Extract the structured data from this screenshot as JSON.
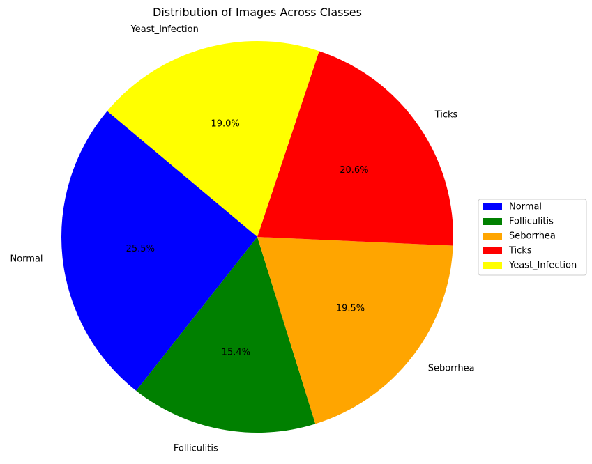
{
  "chart_data": {
    "type": "pie",
    "title": "Distribution of Images Across Classes",
    "categories": [
      "Normal",
      "Folliculitis",
      "Seborrhea",
      "Ticks",
      "Yeast_Infection"
    ],
    "values": [
      25.5,
      15.4,
      19.5,
      20.6,
      19.0
    ],
    "value_labels": [
      "25.5%",
      "15.4%",
      "19.5%",
      "20.6%",
      "19.0%"
    ],
    "colors": [
      "#0000ff",
      "#008000",
      "#ffa500",
      "#ff0000",
      "#ffff00"
    ],
    "start_angle_deg": 140,
    "direction": "counterclockwise",
    "legend": {
      "placement": "center-right",
      "entries": [
        "Normal",
        "Folliculitis",
        "Seborrhea",
        "Ticks",
        "Yeast_Infection"
      ]
    }
  }
}
